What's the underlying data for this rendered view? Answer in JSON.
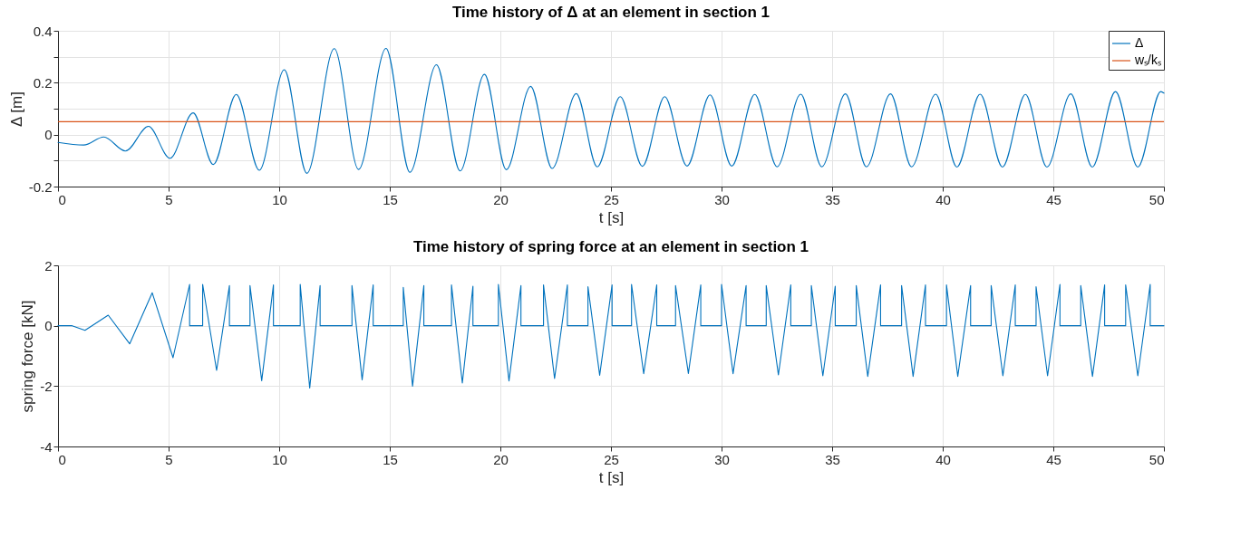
{
  "chart_data": [
    {
      "type": "line",
      "title": "Time history of Δ at an element in section 1",
      "xlabel": "t [s]",
      "ylabel": "Δ [m]",
      "series": [
        {
          "name": "Δ",
          "color": "#0072bd",
          "x": [
            0,
            1.16,
            2.07,
            3.05,
            4.09,
            5.06,
            6.11,
            7.02,
            8.06,
            9.1,
            10.23,
            11.25,
            12.49,
            13.59,
            14.83,
            15.91,
            17.11,
            18.18,
            19.28,
            20.27,
            21.37,
            22.34,
            23.43,
            24.38,
            25.42,
            26.42,
            27.43,
            28.44,
            29.48,
            30.46,
            31.5,
            32.51,
            33.58,
            34.53,
            35.6,
            36.55,
            37.64,
            38.59,
            39.68,
            40.64,
            41.69,
            42.7,
            43.74,
            44.71,
            45.79,
            46.76,
            47.81,
            48.82,
            49.86,
            50
          ],
          "values": [
            -0.03,
            -0.04,
            -0.009,
            -0.063,
            0.032,
            -0.091,
            0.084,
            -0.115,
            0.155,
            -0.137,
            0.25,
            -0.149,
            0.331,
            -0.134,
            0.332,
            -0.145,
            0.269,
            -0.14,
            0.232,
            -0.135,
            0.186,
            -0.13,
            0.158,
            -0.124,
            0.146,
            -0.122,
            0.146,
            -0.121,
            0.153,
            -0.121,
            0.155,
            -0.124,
            0.156,
            -0.124,
            0.157,
            -0.124,
            0.157,
            -0.124,
            0.156,
            -0.125,
            0.156,
            -0.125,
            0.155,
            -0.125,
            0.157,
            -0.125,
            0.166,
            -0.125,
            0.166,
            0.16
          ]
        }
      ],
      "ref_lines": [
        {
          "axis": "y",
          "value": 0.05,
          "label": "wₛ/kₛ",
          "color": "#d95319"
        }
      ],
      "xlim": [
        0,
        50
      ],
      "xticks": [
        0,
        5,
        10,
        15,
        20,
        25,
        30,
        35,
        40,
        45,
        50
      ],
      "ylim": [
        -0.2,
        0.4
      ],
      "yticks": [
        -0.2,
        {
          "value": -0.1,
          "label": null
        },
        0,
        {
          "value": 0.1,
          "label": null
        },
        0.2,
        {
          "value": 0.3,
          "label": null
        },
        0.4
      ],
      "grid": true,
      "legend": "top right"
    },
    {
      "type": "line",
      "title": "Time history of spring force at an element in section 1",
      "xlabel": "t [s]",
      "ylabel": "spring force [kN]",
      "series": [
        {
          "color": "#0072bd",
          "x": [
            0,
            0.64,
            1.22,
            2.27,
            3.24,
            4.26,
            5.2,
            5.95,
            5.95,
            6.54,
            6.54,
            7.17,
            7.75,
            7.75,
            8.68,
            8.68,
            9.21,
            9.74,
            9.74,
            10.95,
            10.95,
            11.38,
            11.85,
            11.85,
            13.29,
            13.29,
            13.75,
            14.25,
            14.25,
            15.61,
            15.61,
            16.03,
            16.54,
            16.54,
            17.79,
            17.79,
            18.28,
            18.76,
            18.76,
            19.91,
            19.91,
            20.39,
            20.93,
            20.93,
            21.95,
            21.95,
            22.45,
            23.03,
            23.03,
            23.96,
            23.96,
            24.49,
            25.05,
            25.05,
            25.93,
            25.93,
            26.48,
            27.07,
            27.07,
            27.92,
            27.92,
            28.5,
            29.06,
            29.06,
            30.0,
            30.0,
            30.52,
            31.11,
            31.11,
            32.02,
            32.02,
            32.57,
            33.13,
            33.13,
            34.06,
            34.06,
            34.58,
            35.14,
            35.14,
            36.09,
            36.09,
            36.61,
            37.19,
            37.19,
            38.14,
            38.14,
            38.66,
            39.22,
            39.22,
            40.17,
            40.17,
            40.68,
            41.26,
            41.26,
            42.19,
            42.19,
            42.72,
            43.28,
            43.28,
            44.22,
            44.22,
            44.74,
            45.3,
            45.3,
            46.24,
            46.24,
            46.77,
            47.32,
            47.32,
            48.27,
            48.27,
            48.82,
            49.38,
            49.38,
            50
          ],
          "values": [
            0,
            0,
            -0.15,
            0.35,
            -0.6,
            1.09,
            -1.06,
            1.37,
            0,
            0,
            1.37,
            -1.48,
            1.33,
            0,
            0,
            1.33,
            -1.82,
            1.35,
            0,
            0,
            1.37,
            -2.06,
            1.33,
            0,
            0,
            1.33,
            -1.79,
            1.35,
            0,
            0,
            1.27,
            -2.0,
            1.33,
            0,
            0,
            1.35,
            -1.9,
            1.31,
            0,
            0,
            1.37,
            -1.83,
            1.33,
            0,
            0,
            1.35,
            -1.75,
            1.35,
            0,
            0,
            1.29,
            -1.64,
            1.35,
            0,
            0,
            1.37,
            -1.59,
            1.35,
            0,
            0,
            1.33,
            -1.58,
            1.35,
            0,
            0,
            1.37,
            -1.59,
            1.33,
            0,
            0,
            1.33,
            -1.63,
            1.35,
            0,
            0,
            1.33,
            -1.66,
            1.31,
            0,
            0,
            1.33,
            -1.68,
            1.35,
            0,
            0,
            1.33,
            -1.68,
            1.35,
            0,
            0,
            1.35,
            -1.68,
            1.33,
            0,
            0,
            1.33,
            -1.66,
            1.35,
            0,
            0,
            1.29,
            -1.66,
            1.37,
            0,
            0,
            1.33,
            -1.68,
            1.35,
            0,
            0,
            1.35,
            -1.66,
            1.37,
            0,
            0
          ]
        }
      ],
      "xlim": [
        0,
        50
      ],
      "xticks": [
        0,
        5,
        10,
        15,
        20,
        25,
        30,
        35,
        40,
        45,
        50
      ],
      "ylim": [
        -4,
        2
      ],
      "yticks": [
        -4,
        -2,
        0,
        2
      ],
      "grid": true
    }
  ]
}
